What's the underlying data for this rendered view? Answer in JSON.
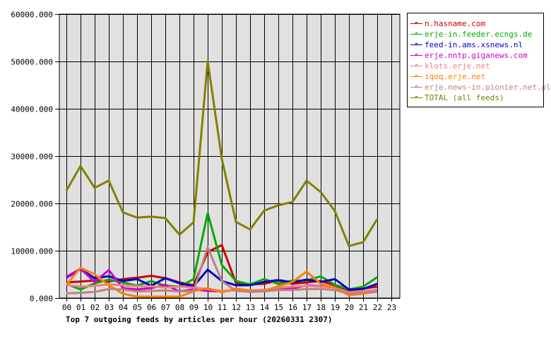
{
  "chart_data": {
    "type": "line",
    "title": "Top 7 outgoing feeds by articles per hour (20260331 2307)",
    "xlabel": "",
    "ylabel": "",
    "ylim": [
      0,
      60000
    ],
    "y_ticks": [
      "0.000",
      "10000.000",
      "20000.000",
      "30000.000",
      "40000.000",
      "50000.000",
      "60000.000"
    ],
    "categories": [
      "00",
      "01",
      "02",
      "03",
      "04",
      "05",
      "06",
      "07",
      "08",
      "09",
      "10",
      "11",
      "12",
      "13",
      "14",
      "15",
      "16",
      "17",
      "18",
      "19",
      "20",
      "21",
      "22",
      "23"
    ],
    "grid": true,
    "legend_position": "right",
    "series": [
      {
        "name": "n.hasname.com",
        "color": "#cc0000",
        "values": [
          3300,
          3500,
          3700,
          3500,
          4000,
          4300,
          4700,
          4200,
          3300,
          2700,
          9700,
          11200,
          3200,
          2900,
          3000,
          3700,
          3000,
          3300,
          3600,
          2700,
          1500,
          2000,
          2400
        ]
      },
      {
        "name": "erje-in.feeder.ecngs.de",
        "color": "#00aa00",
        "values": [
          3000,
          1800,
          3100,
          3900,
          3300,
          2600,
          3600,
          2600,
          2400,
          4000,
          18000,
          7000,
          3600,
          2900,
          4000,
          3000,
          3700,
          3700,
          4600,
          2800,
          1800,
          2400,
          4400
        ]
      },
      {
        "name": "feed-in.ams.xsnews.nl",
        "color": "#0000cc",
        "values": [
          4300,
          6100,
          4200,
          4600,
          3600,
          4000,
          2600,
          4200,
          3100,
          2500,
          6000,
          3600,
          2700,
          2700,
          3400,
          3800,
          3300,
          3900,
          3400,
          4000,
          1800,
          1900,
          3000
        ]
      },
      {
        "name": "erje.nntp.giganews.com",
        "color": "#cc00cc",
        "values": [
          4500,
          6200,
          3400,
          5900,
          2100,
          1800,
          2100,
          2800,
          1400,
          1800,
          1500,
          1400,
          1700,
          1300,
          1600,
          1800,
          2000,
          2700,
          2500,
          2300,
          1000,
          1400,
          1700
        ]
      },
      {
        "name": "klots.erje.net",
        "color": "#f08080",
        "values": [
          2800,
          2400,
          2600,
          2900,
          2700,
          2500,
          2500,
          2200,
          2400,
          2200,
          1900,
          1500,
          1600,
          1600,
          1700,
          2200,
          2400,
          2600,
          2400,
          2200,
          1200,
          1500,
          1600
        ]
      },
      {
        "name": "iqoq.erje.net",
        "color": "#ff8000",
        "values": [
          2800,
          6400,
          5000,
          2700,
          900,
          300,
          300,
          300,
          300,
          1400,
          2100,
          1200,
          2000,
          1600,
          1500,
          2500,
          3400,
          5600,
          3000,
          2200,
          600,
          900,
          1400
        ]
      },
      {
        "name": "erje.news-in.pionier.net.pl",
        "color": "#c08080",
        "values": [
          1000,
          1100,
          1300,
          1900,
          1800,
          1400,
          1500,
          1600,
          1400,
          1500,
          10700,
          3600,
          1500,
          1300,
          1400,
          1700,
          1700,
          1900,
          1900,
          1700,
          900,
          1200,
          1300
        ]
      },
      {
        "name": "TOTAL (all feeds)",
        "color": "#808000",
        "values": [
          22700,
          27900,
          23300,
          24800,
          18100,
          17000,
          17200,
          16900,
          13400,
          16000,
          50100,
          29400,
          16100,
          14500,
          18500,
          19600,
          20300,
          24800,
          22400,
          18400,
          11000,
          11800,
          16700
        ]
      }
    ]
  },
  "layout": {
    "plot_bg": "#e0e0e0",
    "grid_color": "#000000"
  }
}
